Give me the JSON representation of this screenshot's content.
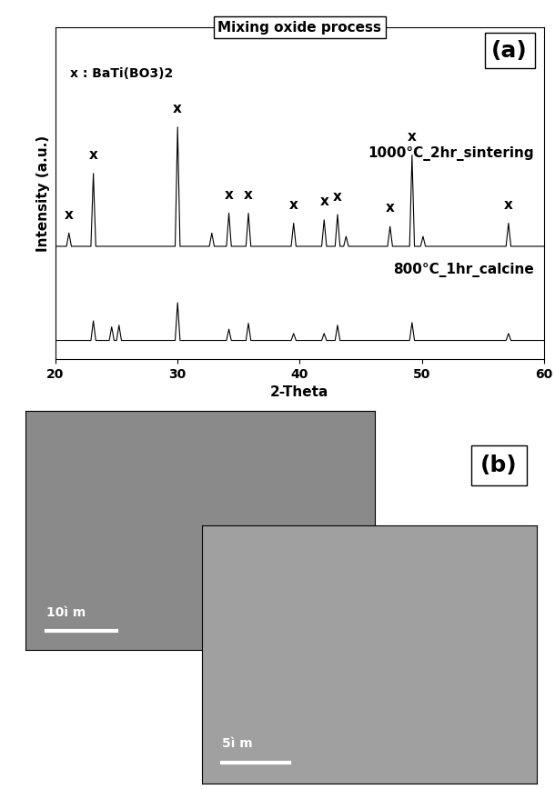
{
  "chart_data": {
    "type": "line",
    "title": "Mixing oxide process",
    "panel_label": "(a)",
    "x_label": "2-Theta",
    "y_label": "Intensity (a.u.)",
    "xlim": [
      20,
      60
    ],
    "xticks": [
      20,
      30,
      40,
      50,
      60
    ],
    "ylim": [
      0,
      100
    ],
    "tick_labels": "x",
    "legend_text": "x : BaTi(BO3)2",
    "series": [
      {
        "name": "1000°C_2hr_sintering",
        "color": "#000000",
        "x": [
          20,
          20.9,
          21.1,
          21.3,
          22.9,
          23.1,
          23.3,
          29.8,
          30,
          30.2,
          32.6,
          32.8,
          33.0,
          34.0,
          34.2,
          34.4,
          35.6,
          35.8,
          36.0,
          39.3,
          39.5,
          39.7,
          41.8,
          42.0,
          42.2,
          42.9,
          43.1,
          43.3,
          43.6,
          43.8,
          44.0,
          47.2,
          47.4,
          47.6,
          49.0,
          49.2,
          49.4,
          49.9,
          50.1,
          50.3,
          56.9,
          57.1,
          57.3,
          60
        ],
        "values": [
          34,
          34,
          38,
          34,
          34,
          56,
          34,
          34,
          70,
          34,
          34,
          38,
          34,
          34,
          44,
          34,
          34,
          44,
          34,
          34,
          41,
          34,
          34,
          42,
          34,
          34,
          43.6,
          34,
          34,
          37,
          34,
          34,
          40,
          34,
          34,
          61.5,
          34,
          34,
          37,
          34,
          34,
          41,
          34,
          34
        ]
      },
      {
        "name": "800°C_1hr_calcine",
        "color": "#000000",
        "x": [
          20,
          22.9,
          23.1,
          23.3,
          24.4,
          24.6,
          24.8,
          25.0,
          25.2,
          25.4,
          29.8,
          30,
          30.2,
          34.0,
          34.2,
          34.4,
          35.6,
          35.8,
          36.0,
          39.3,
          39.5,
          39.7,
          41.8,
          42,
          42.2,
          42.9,
          43.1,
          43.3,
          49.0,
          49.2,
          49.4,
          56.9,
          57.1,
          57.3,
          60
        ],
        "values": [
          5.6,
          5.6,
          11.5,
          5.6,
          5.6,
          9.7,
          5.6,
          5.6,
          10.2,
          5.6,
          5.6,
          17,
          5.6,
          5.6,
          9,
          5.6,
          5.6,
          10.8,
          5.6,
          5.6,
          7.7,
          5.6,
          5.6,
          7.7,
          5.6,
          5.6,
          10.2,
          5.6,
          5.6,
          11,
          5.6,
          5.6,
          7.7,
          5.6,
          5.6
        ]
      }
    ],
    "annotations": [
      {
        "text": "x",
        "x": 21.1,
        "y": 41.5
      },
      {
        "text": "x",
        "x": 23.1,
        "y": 59.5
      },
      {
        "text": "x",
        "x": 30,
        "y": 73.5
      },
      {
        "text": "x",
        "x": 34.2,
        "y": 47.5
      },
      {
        "text": "x",
        "x": 35.8,
        "y": 47.5
      },
      {
        "text": "x",
        "x": 39.5,
        "y": 44.5
      },
      {
        "text": "x",
        "x": 42,
        "y": 45.5
      },
      {
        "text": "x",
        "x": 43.1,
        "y": 47
      },
      {
        "text": "x",
        "x": 47.4,
        "y": 43.5
      },
      {
        "text": "x",
        "x": 49.2,
        "y": 65
      },
      {
        "text": "x",
        "x": 57.1,
        "y": 44.5
      }
    ]
  },
  "panel_b": {
    "label": "(b)",
    "images": [
      {
        "scale_bar": "10ì m"
      },
      {
        "scale_bar": "5ì m"
      }
    ]
  }
}
